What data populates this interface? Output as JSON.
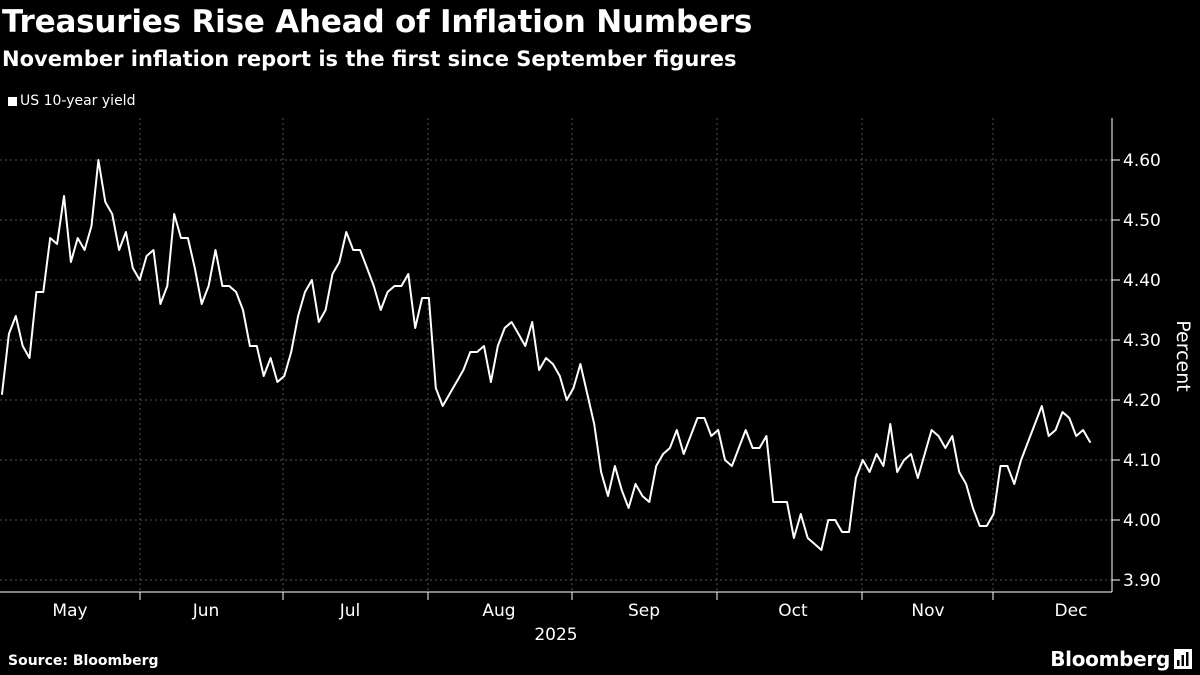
{
  "header": {
    "title": "Treasuries Rise Ahead of Inflation Numbers",
    "subtitle": "November inflation report is the first since September figures"
  },
  "footer": {
    "source": "Source: Bloomberg",
    "brand": "Bloomberg"
  },
  "colors": {
    "background": "#000000",
    "line": "#ffffff",
    "grid": "#555555"
  },
  "chart_data": {
    "type": "line",
    "title": "Treasuries Rise Ahead of Inflation Numbers",
    "subtitle": "November inflation report is the first since September figures",
    "xlabel": "2025",
    "ylabel": "Percent",
    "ylim": [
      3.88,
      4.67
    ],
    "y_ticks": [
      "4.60",
      "4.50",
      "4.40",
      "4.30",
      "4.20",
      "4.10",
      "4.00",
      "3.90"
    ],
    "y_tick_values": [
      4.6,
      4.5,
      4.4,
      4.3,
      4.2,
      4.1,
      4.0,
      3.9
    ],
    "x_year_label": "2025",
    "months": [
      "May",
      "Jun",
      "Jul",
      "Aug",
      "Sep",
      "Oct",
      "Nov",
      "Dec"
    ],
    "grid": true,
    "legend": "top-left",
    "series": [
      {
        "name": "US 10-year yield",
        "values": [
          4.21,
          4.31,
          4.34,
          4.29,
          4.27,
          4.38,
          4.38,
          4.47,
          4.46,
          4.54,
          4.43,
          4.47,
          4.45,
          4.49,
          4.6,
          4.53,
          4.51,
          4.45,
          4.48,
          4.42,
          4.4,
          4.44,
          4.45,
          4.36,
          4.39,
          4.51,
          4.47,
          4.47,
          4.42,
          4.36,
          4.39,
          4.45,
          4.39,
          4.39,
          4.38,
          4.35,
          4.29,
          4.29,
          4.24,
          4.27,
          4.23,
          4.24,
          4.28,
          4.34,
          4.38,
          4.4,
          4.33,
          4.35,
          4.41,
          4.43,
          4.48,
          4.45,
          4.45,
          4.42,
          4.39,
          4.35,
          4.38,
          4.39,
          4.39,
          4.41,
          4.32,
          4.37,
          4.37,
          4.22,
          4.19,
          4.21,
          4.23,
          4.25,
          4.28,
          4.28,
          4.29,
          4.23,
          4.29,
          4.32,
          4.33,
          4.31,
          4.29,
          4.33,
          4.25,
          4.27,
          4.26,
          4.24,
          4.2,
          4.22,
          4.26,
          4.21,
          4.16,
          4.08,
          4.04,
          4.09,
          4.05,
          4.02,
          4.06,
          4.04,
          4.03,
          4.09,
          4.11,
          4.12,
          4.15,
          4.11,
          4.14,
          4.17,
          4.17,
          4.14,
          4.15,
          4.1,
          4.09,
          4.12,
          4.15,
          4.12,
          4.12,
          4.14,
          4.03,
          4.03,
          4.03,
          3.97,
          4.01,
          3.97,
          3.96,
          3.95,
          4.0,
          4.0,
          3.98,
          3.98,
          4.07,
          4.1,
          4.08,
          4.11,
          4.09,
          4.16,
          4.08,
          4.1,
          4.11,
          4.07,
          4.11,
          4.15,
          4.14,
          4.12,
          4.14,
          4.08,
          4.06,
          4.02,
          3.99,
          3.99,
          4.01,
          4.09,
          4.09,
          4.06,
          4.1,
          4.13,
          4.16,
          4.19,
          4.14,
          4.15,
          4.18,
          4.17,
          4.14,
          4.15,
          4.13
        ]
      }
    ]
  }
}
